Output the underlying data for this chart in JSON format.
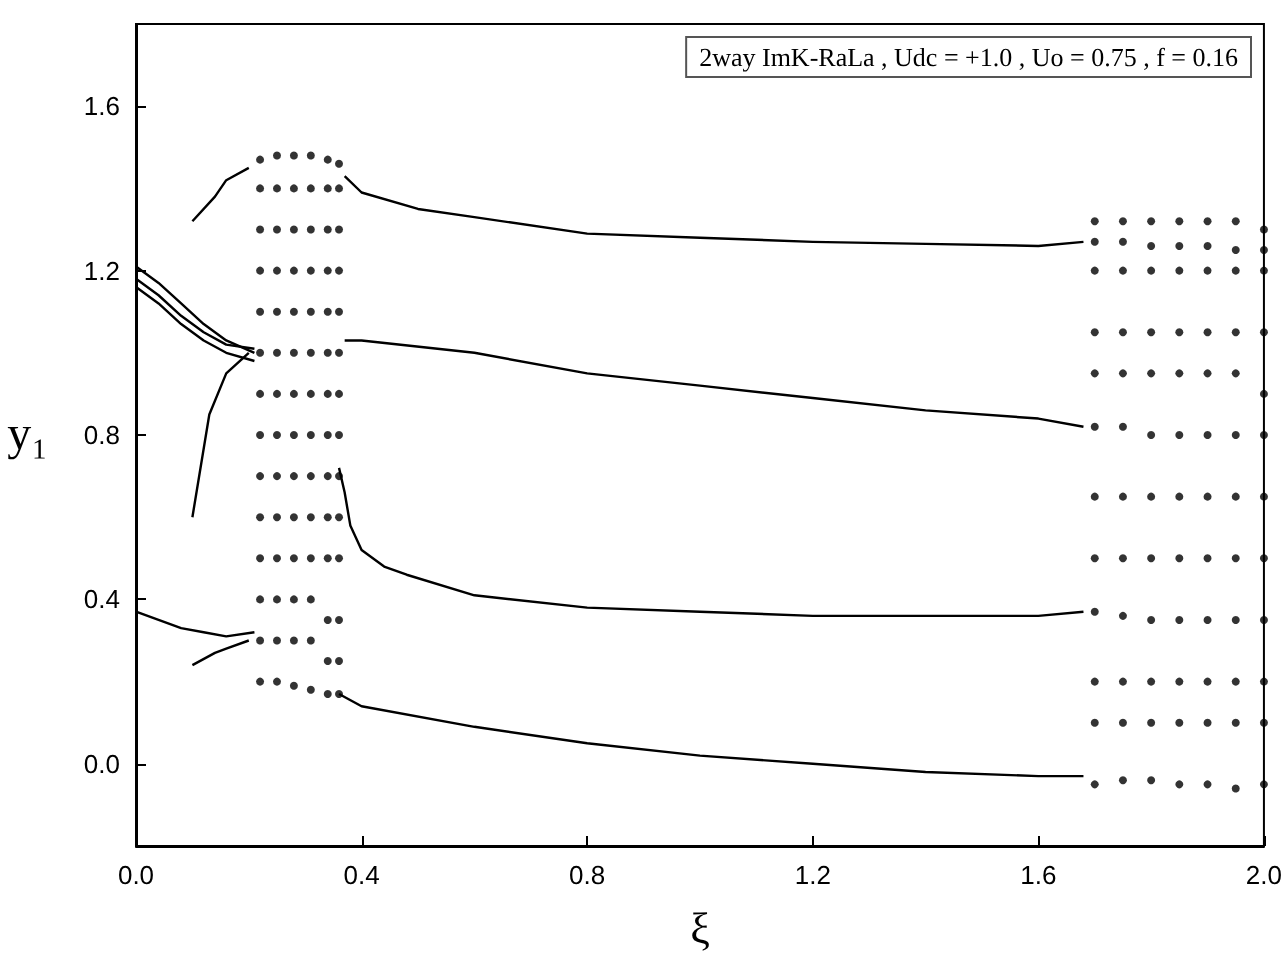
{
  "chart_data": {
    "type": "line",
    "xlabel": "ξ",
    "ylabel": "y₁",
    "annotations": [
      "2way ImK-RaLa , Udc = +1.0 , Uo = 0.75 , f = 0.16"
    ],
    "xlim": [
      0,
      2
    ],
    "xticks": [
      {
        "value": 0,
        "label": "0.0"
      },
      0.4,
      0.8,
      1.2,
      1.6,
      {
        "value": 2,
        "label": "2.0"
      }
    ],
    "ylim": [
      -0.2,
      1.8
    ],
    "yticks": [
      {
        "value": 0,
        "label": "0.0"
      },
      0.4,
      0.8,
      1.2,
      1.6
    ],
    "series": [
      {
        "marker": "none",
        "color": "#000000",
        "x": [
          0.37,
          0.4,
          0.5,
          0.6,
          0.8,
          1.0,
          1.2,
          1.4,
          1.6,
          1.68
        ],
        "values": [
          1.43,
          1.39,
          1.35,
          1.33,
          1.29,
          1.28,
          1.27,
          1.265,
          1.26,
          1.27
        ]
      },
      {
        "marker": "none",
        "color": "#000000",
        "x": [
          0.37,
          0.4,
          0.6,
          0.8,
          1.0,
          1.2,
          1.4,
          1.6,
          1.68
        ],
        "values": [
          1.03,
          1.03,
          1.0,
          0.95,
          0.92,
          0.89,
          0.86,
          0.84,
          0.82
        ]
      },
      {
        "marker": "none",
        "color": "#000000",
        "x": [
          0.36,
          0.37,
          0.38,
          0.4,
          0.44,
          0.48,
          0.6,
          0.8,
          1.0,
          1.2,
          1.4,
          1.6,
          1.68
        ],
        "values": [
          0.72,
          0.66,
          0.58,
          0.52,
          0.48,
          0.46,
          0.41,
          0.38,
          0.37,
          0.36,
          0.36,
          0.36,
          0.37
        ]
      },
      {
        "marker": "none",
        "color": "#000000",
        "x": [
          0.36,
          0.4,
          0.6,
          0.8,
          1.0,
          1.2,
          1.4,
          1.6,
          1.68
        ],
        "values": [
          0.17,
          0.14,
          0.09,
          0.05,
          0.02,
          0.0,
          -0.02,
          -0.03,
          -0.03
        ]
      },
      {
        "marker": "none",
        "color": "#000000",
        "x": [
          0,
          0.04,
          0.08,
          0.12,
          0.16,
          0.21
        ],
        "values": [
          1.21,
          1.17,
          1.12,
          1.07,
          1.03,
          1.0
        ]
      },
      {
        "marker": "none",
        "color": "#000000",
        "x": [
          0,
          0.04,
          0.08,
          0.12,
          0.16,
          0.21
        ],
        "values": [
          1.18,
          1.14,
          1.09,
          1.05,
          1.02,
          1.01
        ]
      },
      {
        "marker": "none",
        "color": "#000000",
        "x": [
          0,
          0.04,
          0.08,
          0.12,
          0.16,
          0.21
        ],
        "values": [
          1.16,
          1.12,
          1.07,
          1.03,
          1.0,
          0.98
        ]
      },
      {
        "marker": "none",
        "color": "#000000",
        "x": [
          0,
          0.04,
          0.08,
          0.12,
          0.16,
          0.21
        ],
        "values": [
          0.37,
          0.35,
          0.33,
          0.32,
          0.31,
          0.32
        ]
      },
      {
        "marker": "none",
        "color": "#000000",
        "x": [
          0.1,
          0.14,
          0.16,
          0.2
        ],
        "values": [
          1.32,
          1.38,
          1.42,
          1.45
        ]
      },
      {
        "marker": "none",
        "color": "#000000",
        "x": [
          0.1,
          0.14,
          0.16,
          0.2
        ],
        "values": [
          0.24,
          0.27,
          0.28,
          0.3
        ]
      },
      {
        "marker": "none",
        "color": "#000000",
        "x": [
          0.1,
          0.13,
          0.16,
          0.2
        ],
        "values": [
          0.6,
          0.85,
          0.95,
          1.0
        ]
      },
      {
        "type": "scatter",
        "marker": "circle",
        "color": "#000000",
        "x": [
          0.22,
          0.22,
          0.22,
          0.22,
          0.22,
          0.22,
          0.22,
          0.22,
          0.22,
          0.22,
          0.22,
          0.22,
          0.22,
          0.22,
          0.25,
          0.25,
          0.25,
          0.25,
          0.25,
          0.25,
          0.25,
          0.25,
          0.25,
          0.25,
          0.25,
          0.25,
          0.25,
          0.25,
          0.28,
          0.28,
          0.28,
          0.28,
          0.28,
          0.28,
          0.28,
          0.28,
          0.28,
          0.28,
          0.28,
          0.28,
          0.28,
          0.28,
          0.31,
          0.31,
          0.31,
          0.31,
          0.31,
          0.31,
          0.31,
          0.31,
          0.31,
          0.31,
          0.31,
          0.31,
          0.31,
          0.31,
          0.34,
          0.34,
          0.34,
          0.34,
          0.34,
          0.34,
          0.34,
          0.34,
          0.34,
          0.34,
          0.34,
          0.34,
          0.34,
          0.34,
          0.36,
          0.36,
          0.36,
          0.36,
          0.36,
          0.36,
          0.36,
          0.36,
          0.36,
          0.36,
          0.36,
          0.36,
          0.36,
          0.36
        ],
        "values": [
          0.2,
          0.3,
          0.4,
          0.5,
          0.6,
          0.7,
          0.8,
          0.9,
          1.0,
          1.1,
          1.2,
          1.3,
          1.4,
          1.47,
          0.2,
          0.3,
          0.4,
          0.5,
          0.6,
          0.7,
          0.8,
          0.9,
          1.0,
          1.1,
          1.2,
          1.3,
          1.4,
          1.48,
          0.19,
          0.3,
          0.4,
          0.5,
          0.6,
          0.7,
          0.8,
          0.9,
          1.0,
          1.1,
          1.2,
          1.3,
          1.4,
          1.48,
          0.18,
          0.3,
          0.4,
          0.5,
          0.6,
          0.7,
          0.8,
          0.9,
          1.0,
          1.1,
          1.2,
          1.3,
          1.4,
          1.48,
          0.17,
          0.25,
          0.35,
          0.5,
          0.6,
          0.7,
          0.8,
          0.9,
          1.0,
          1.1,
          1.2,
          1.3,
          1.4,
          1.47,
          0.17,
          0.25,
          0.35,
          0.5,
          0.6,
          0.7,
          0.8,
          0.9,
          1.0,
          1.1,
          1.2,
          1.3,
          1.4,
          1.46
        ]
      },
      {
        "type": "scatter",
        "marker": "circle",
        "color": "#000000",
        "x": [
          1.7,
          1.7,
          1.7,
          1.7,
          1.7,
          1.7,
          1.7,
          1.7,
          1.7,
          1.7,
          1.7,
          1.7,
          1.75,
          1.75,
          1.75,
          1.75,
          1.75,
          1.75,
          1.75,
          1.75,
          1.75,
          1.75,
          1.75,
          1.75,
          1.8,
          1.8,
          1.8,
          1.8,
          1.8,
          1.8,
          1.8,
          1.8,
          1.8,
          1.8,
          1.8,
          1.8,
          1.85,
          1.85,
          1.85,
          1.85,
          1.85,
          1.85,
          1.85,
          1.85,
          1.85,
          1.85,
          1.85,
          1.85,
          1.9,
          1.9,
          1.9,
          1.9,
          1.9,
          1.9,
          1.9,
          1.9,
          1.9,
          1.9,
          1.9,
          1.9,
          1.95,
          1.95,
          1.95,
          1.95,
          1.95,
          1.95,
          1.95,
          1.95,
          1.95,
          1.95,
          1.95,
          1.95,
          2.0,
          2.0,
          2.0,
          2.0,
          2.0,
          2.0,
          2.0,
          2.0,
          2.0,
          2.0,
          2.0,
          2.0
        ],
        "values": [
          -0.05,
          0.1,
          0.2,
          0.37,
          0.5,
          0.65,
          0.82,
          0.95,
          1.05,
          1.2,
          1.27,
          1.32,
          -0.04,
          0.1,
          0.2,
          0.36,
          0.5,
          0.65,
          0.82,
          0.95,
          1.05,
          1.2,
          1.27,
          1.32,
          -0.04,
          0.1,
          0.2,
          0.35,
          0.5,
          0.65,
          0.8,
          0.95,
          1.05,
          1.2,
          1.26,
          1.32,
          -0.05,
          0.1,
          0.2,
          0.35,
          0.5,
          0.65,
          0.8,
          0.95,
          1.05,
          1.2,
          1.26,
          1.32,
          -0.05,
          0.1,
          0.2,
          0.35,
          0.5,
          0.65,
          0.8,
          0.95,
          1.05,
          1.2,
          1.26,
          1.32,
          -0.06,
          0.1,
          0.2,
          0.35,
          0.5,
          0.65,
          0.8,
          0.95,
          1.05,
          1.2,
          1.25,
          1.32,
          -0.05,
          0.1,
          0.2,
          0.35,
          0.5,
          0.65,
          0.8,
          0.9,
          1.05,
          1.2,
          1.25,
          1.3
        ]
      }
    ]
  }
}
